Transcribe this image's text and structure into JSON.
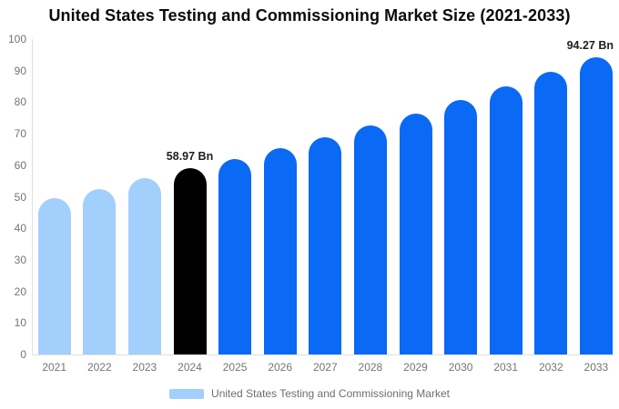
{
  "title": "United States Testing and Commissioning Market Size (2021-2033)",
  "colors": {
    "past": "#A3CFFC",
    "current": "#000000",
    "forecast": "#0A69F5",
    "axis_line": "#E0E0E0",
    "tick_text": "#757575",
    "value_label_text": "#1F1F1F",
    "title_text": "#0B0B0B",
    "background": "#FFFFFF"
  },
  "legend": {
    "label": "United States Testing and Commissioning Market",
    "swatch_color": "#A3CFFC"
  },
  "chart_data": {
    "type": "bar",
    "title": "United States Testing and Commissioning Market Size (2021-2033)",
    "xlabel": "",
    "ylabel": "",
    "ylim": [
      0,
      100
    ],
    "yticks": [
      0,
      10,
      20,
      30,
      40,
      50,
      60,
      70,
      80,
      90,
      100
    ],
    "grid": false,
    "legend_position": "bottom",
    "legend_entries": [
      "United States Testing and Commissioning Market"
    ],
    "unit": "Bn",
    "categories": [
      "2021",
      "2022",
      "2023",
      "2024",
      "2025",
      "2026",
      "2027",
      "2028",
      "2029",
      "2030",
      "2031",
      "2032",
      "2033"
    ],
    "values": [
      49.5,
      52.4,
      55.9,
      58.97,
      62.1,
      65.5,
      69.0,
      72.6,
      76.5,
      80.6,
      84.9,
      89.5,
      94.27
    ],
    "bar_roles": [
      "past",
      "past",
      "past",
      "current",
      "forecast",
      "forecast",
      "forecast",
      "forecast",
      "forecast",
      "forecast",
      "forecast",
      "forecast",
      "forecast"
    ],
    "value_labels": [
      {
        "index": 3,
        "text": "58.97 Bn"
      },
      {
        "index": 12,
        "text": "94.27 Bn"
      }
    ]
  }
}
